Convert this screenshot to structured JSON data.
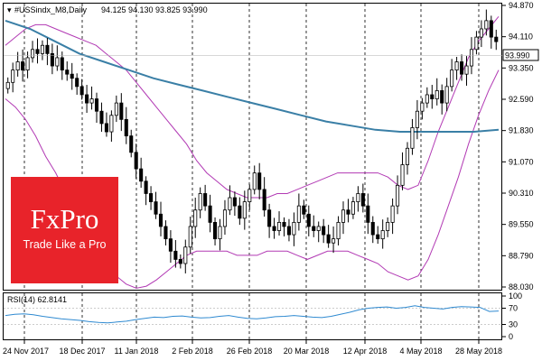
{
  "header": {
    "symbol": "#USSindx_M8,Daily",
    "ohlc": "94.125 94.130 93.825 93.990"
  },
  "price_tag": "93.990",
  "logo": {
    "name": "FxPro",
    "tagline": "Trade Like a Pro"
  },
  "rsi_label": "RSI(14) 62.8141",
  "colors": {
    "candle": "#000000",
    "bollinger": "#b23ab4",
    "moving_average": "#3a7fa6",
    "rsi": "#2f8ad1",
    "logo_bg": "#e8232a",
    "price_tag_bg": "#ffffff"
  },
  "chart_data": [
    {
      "type": "candlestick",
      "y_ticks": [
        "94.870",
        "94.110",
        "93.350",
        "92.590",
        "91.830",
        "91.070",
        "90.310",
        "89.550",
        "88.790",
        "88.030"
      ],
      "ylim": [
        88.03,
        94.87
      ],
      "x_ticks": [
        "24 Nov 2017",
        "18 Dec 2017",
        "11 Jan 2018",
        "2 Feb 2018",
        "26 Feb 2018",
        "20 Mar 2018",
        "12 Apr 2018",
        "4 May 2018",
        "28 May 2018"
      ],
      "grid": "vertical dashed at date labels",
      "indicators": [
        "Bollinger Bands",
        "Moving Average"
      ],
      "series": [
        {
          "close": [
            93.0,
            93.3,
            93.5,
            93.3,
            93.6,
            93.8,
            93.7,
            93.9,
            93.7,
            93.4,
            93.6,
            93.3,
            93.2,
            93.1,
            92.9,
            92.7,
            92.5,
            92.6,
            92.3,
            92.0,
            91.8,
            92.2,
            92.5,
            92.1,
            91.7,
            91.3,
            90.9,
            90.6,
            90.3,
            90.1,
            89.8,
            89.5,
            89.2,
            88.9,
            88.7,
            88.6,
            89.0,
            89.5,
            89.9,
            90.3,
            90.0,
            89.6,
            89.2,
            89.5,
            89.9,
            90.2,
            90.0,
            89.7,
            90.1,
            90.4,
            90.8,
            90.4,
            89.9,
            89.5,
            89.4,
            89.6,
            89.5,
            89.3,
            89.6,
            90.0,
            89.8,
            89.5,
            89.4,
            89.5,
            89.3,
            89.1,
            89.2,
            89.6,
            89.9,
            89.8,
            90.1,
            90.3,
            90.0,
            89.6,
            89.3,
            89.2,
            89.4,
            89.6,
            90.0,
            90.5,
            91.0,
            91.4,
            91.9,
            92.3,
            92.5,
            92.7,
            92.6,
            92.8,
            92.5,
            92.9,
            93.3,
            93.5,
            93.2,
            93.4,
            93.8,
            94.1,
            94.3,
            94.5,
            94.1,
            93.99
          ]
        }
      ],
      "bollinger_upper": [
        93.9,
        94.1,
        94.3,
        94.4,
        94.4,
        94.3,
        94.2,
        94.1,
        94.0,
        93.9,
        93.7,
        93.5,
        93.3,
        93.0,
        92.7,
        92.4,
        92.1,
        91.8,
        91.5,
        91.1,
        90.8,
        90.6,
        90.4,
        90.3,
        90.2,
        90.2,
        90.2,
        90.3,
        90.3,
        90.4,
        90.5,
        90.6,
        90.7,
        90.8,
        90.8,
        90.8,
        90.8,
        90.8,
        90.7,
        90.5,
        90.4,
        90.5,
        91.1,
        91.8,
        92.4,
        93.0,
        93.6,
        94.0,
        94.3,
        94.6
      ],
      "bollinger_lower": [
        92.6,
        92.4,
        92.1,
        91.7,
        91.2,
        90.8,
        90.3,
        89.8,
        89.3,
        88.9,
        88.6,
        88.3,
        88.1,
        88.0,
        88.05,
        88.2,
        88.4,
        88.6,
        88.8,
        88.9,
        88.9,
        88.9,
        88.9,
        88.8,
        88.8,
        88.8,
        88.9,
        88.9,
        88.9,
        88.8,
        88.7,
        88.8,
        88.9,
        88.9,
        88.9,
        88.8,
        88.7,
        88.6,
        88.4,
        88.3,
        88.2,
        88.3,
        88.7,
        89.3,
        90.0,
        90.7,
        91.5,
        92.2,
        92.8,
        93.3
      ],
      "moving_average": [
        94.5,
        94.3,
        94.0,
        93.7,
        93.5,
        93.3,
        93.1,
        92.95,
        92.8,
        92.65,
        92.5,
        92.35,
        92.2,
        92.05,
        91.95,
        91.85,
        91.8,
        91.8,
        91.8,
        91.8,
        91.85
      ]
    },
    {
      "type": "line",
      "name": "RSI(14)",
      "y_ticks": [
        "100",
        "70",
        "30",
        "0"
      ],
      "ylim": [
        0,
        100
      ],
      "values": [
        52,
        55,
        56,
        54,
        50,
        47,
        44,
        42,
        40,
        37,
        35,
        34,
        36,
        38,
        42,
        45,
        48,
        47,
        50,
        51,
        48,
        46,
        47,
        50,
        52,
        48,
        45,
        44,
        46,
        49,
        50,
        52,
        50,
        48,
        47,
        50,
        55,
        60,
        66,
        70,
        72,
        73,
        70,
        72,
        76,
        72,
        70,
        68,
        72,
        74,
        73,
        72,
        62,
        63
      ]
    }
  ]
}
